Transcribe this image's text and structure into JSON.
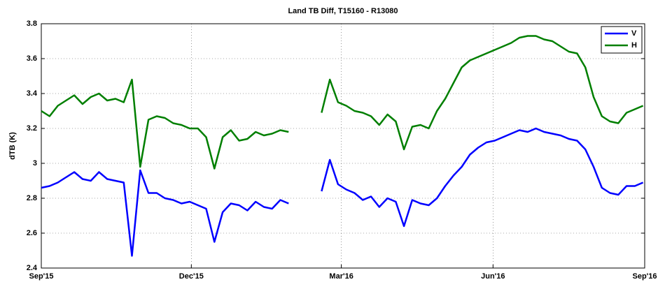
{
  "chart_data": {
    "type": "line",
    "title": "Land TB Diff, T15160 - R13080",
    "ylabel": "dTB (K)",
    "x": [
      0,
      5,
      10,
      15,
      20,
      25,
      30,
      35,
      40,
      45,
      50,
      55,
      60,
      65,
      70,
      75,
      80,
      85,
      90,
      95,
      100,
      105,
      110,
      115,
      120,
      125,
      130,
      135,
      140,
      145,
      150,
      155,
      160,
      165,
      170,
      175,
      180,
      185,
      190,
      195,
      200,
      205,
      210,
      215,
      220,
      225,
      230,
      235,
      240,
      245,
      250,
      255,
      260,
      265,
      270,
      275,
      280,
      285,
      290,
      295,
      300,
      305,
      310,
      315,
      320,
      325,
      330,
      335,
      340,
      345,
      350,
      355,
      360,
      365
    ],
    "series": [
      {
        "name": "V",
        "color": "#0000ff",
        "values": [
          2.86,
          2.87,
          2.89,
          2.92,
          2.95,
          2.91,
          2.9,
          2.95,
          2.91,
          2.9,
          2.89,
          2.47,
          2.96,
          2.83,
          2.83,
          2.8,
          2.79,
          2.77,
          2.78,
          2.76,
          2.74,
          2.55,
          2.72,
          2.77,
          2.76,
          2.73,
          2.78,
          2.75,
          2.74,
          2.79,
          2.77,
          null,
          null,
          null,
          2.84,
          3.02,
          2.88,
          2.85,
          2.83,
          2.79,
          2.81,
          2.75,
          2.8,
          2.78,
          2.64,
          2.79,
          2.77,
          2.76,
          2.8,
          2.87,
          2.93,
          2.98,
          3.05,
          3.09,
          3.12,
          3.13,
          3.15,
          3.17,
          3.19,
          3.18,
          3.2,
          3.18,
          3.17,
          3.16,
          3.14,
          3.13,
          3.08,
          2.98,
          2.86,
          2.83,
          2.82,
          2.87,
          2.87,
          2.89
        ]
      },
      {
        "name": "H",
        "color": "#007f00",
        "values": [
          3.3,
          3.27,
          3.33,
          3.36,
          3.39,
          3.34,
          3.38,
          3.4,
          3.36,
          3.37,
          3.35,
          3.48,
          2.98,
          3.25,
          3.27,
          3.26,
          3.23,
          3.22,
          3.2,
          3.2,
          3.15,
          2.97,
          3.15,
          3.19,
          3.13,
          3.14,
          3.18,
          3.16,
          3.17,
          3.19,
          3.18,
          null,
          null,
          null,
          3.29,
          3.48,
          3.35,
          3.33,
          3.3,
          3.29,
          3.27,
          3.22,
          3.28,
          3.24,
          3.08,
          3.21,
          3.22,
          3.2,
          3.3,
          3.37,
          3.46,
          3.55,
          3.59,
          3.61,
          3.63,
          3.65,
          3.67,
          3.69,
          3.72,
          3.73,
          3.73,
          3.71,
          3.7,
          3.67,
          3.64,
          3.63,
          3.55,
          3.38,
          3.27,
          3.24,
          3.23,
          3.29,
          3.31,
          3.33
        ]
      }
    ],
    "xlim": [
      0,
      366
    ],
    "xticks": [
      {
        "value": 0,
        "label": "Sep'15"
      },
      {
        "value": 91,
        "label": "Dec'15"
      },
      {
        "value": 182,
        "label": "Mar'16"
      },
      {
        "value": 274,
        "label": "Jun'16"
      },
      {
        "value": 366,
        "label": "Sep'16"
      }
    ],
    "ylim": [
      2.4,
      3.8
    ],
    "yticks": [
      2.4,
      2.6,
      2.8,
      3,
      3.2,
      3.4,
      3.6,
      3.8
    ],
    "grid": true,
    "legend": "upper right"
  }
}
